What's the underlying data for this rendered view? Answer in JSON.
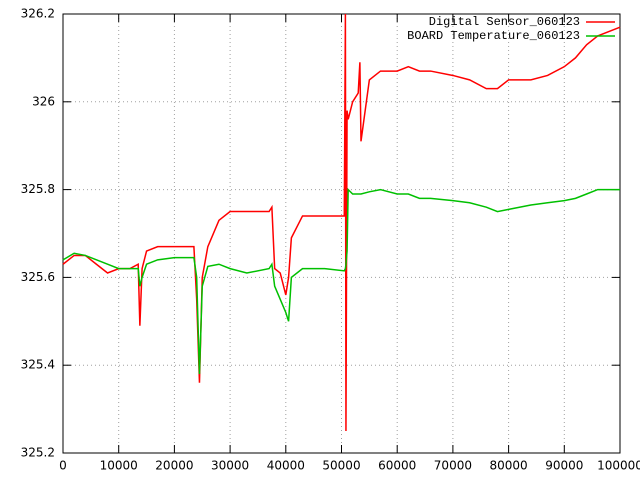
{
  "chart_data": {
    "type": "line",
    "x": [
      0,
      2000,
      4000,
      6000,
      8000,
      10000,
      12000,
      13500,
      13800,
      14200,
      15000,
      17000,
      20000,
      23500,
      24000,
      24500,
      25000,
      26000,
      28000,
      30000,
      33000,
      37000,
      37500,
      38000,
      39000,
      40000,
      40500,
      41000,
      43000,
      47000,
      50500,
      50700,
      50800,
      51000,
      51200,
      52000,
      53000,
      53300,
      53500,
      55000,
      57000,
      60000,
      62000,
      64000,
      66000,
      70000,
      73000,
      76000,
      78000,
      80000,
      84000,
      87000,
      90000,
      92000,
      94000,
      96000,
      100000
    ],
    "series": [
      {
        "name": "Digital Sensor_060123",
        "color": "#ff0000",
        "values": [
          325.63,
          325.65,
          325.65,
          325.63,
          325.61,
          325.62,
          325.62,
          325.63,
          325.49,
          325.62,
          325.66,
          325.67,
          325.67,
          325.67,
          325.55,
          325.36,
          325.6,
          325.67,
          325.73,
          325.75,
          325.75,
          325.75,
          325.76,
          325.62,
          325.61,
          325.56,
          325.6,
          325.69,
          325.74,
          325.74,
          325.74,
          326.2,
          325.25,
          325.98,
          325.96,
          326,
          326.02,
          326.09,
          325.91,
          326.05,
          326.07,
          326.07,
          326.08,
          326.07,
          326.07,
          326.06,
          326.05,
          326.03,
          326.03,
          326.05,
          326.05,
          326.06,
          326.08,
          326.1,
          326.13,
          326.15,
          326.17
        ]
      },
      {
        "name": "BOARD Temperature_060123",
        "color": "#00c000",
        "values": [
          325.64,
          325.655,
          325.65,
          325.64,
          325.63,
          325.62,
          325.62,
          325.62,
          325.58,
          325.6,
          325.63,
          325.64,
          325.645,
          325.645,
          325.6,
          325.38,
          325.58,
          325.625,
          325.63,
          325.62,
          325.61,
          325.62,
          325.63,
          325.58,
          325.55,
          325.52,
          325.5,
          325.6,
          325.62,
          325.62,
          325.615,
          325.62,
          325.63,
          325.66,
          325.8,
          325.79,
          325.79,
          325.79,
          325.79,
          325.795,
          325.8,
          325.79,
          325.79,
          325.78,
          325.78,
          325.775,
          325.77,
          325.76,
          325.75,
          325.755,
          325.765,
          325.77,
          325.775,
          325.78,
          325.79,
          325.8,
          325.8
        ]
      }
    ],
    "xlim": [
      0,
      100000
    ],
    "xticks": [
      0,
      10000,
      20000,
      30000,
      40000,
      50000,
      60000,
      70000,
      80000,
      90000,
      100000
    ],
    "ylim": [
      325.2,
      326.2
    ],
    "yticks": [
      325.2,
      325.4,
      325.6,
      325.8,
      326,
      326.2
    ],
    "grid": true,
    "legend": "top-right"
  }
}
